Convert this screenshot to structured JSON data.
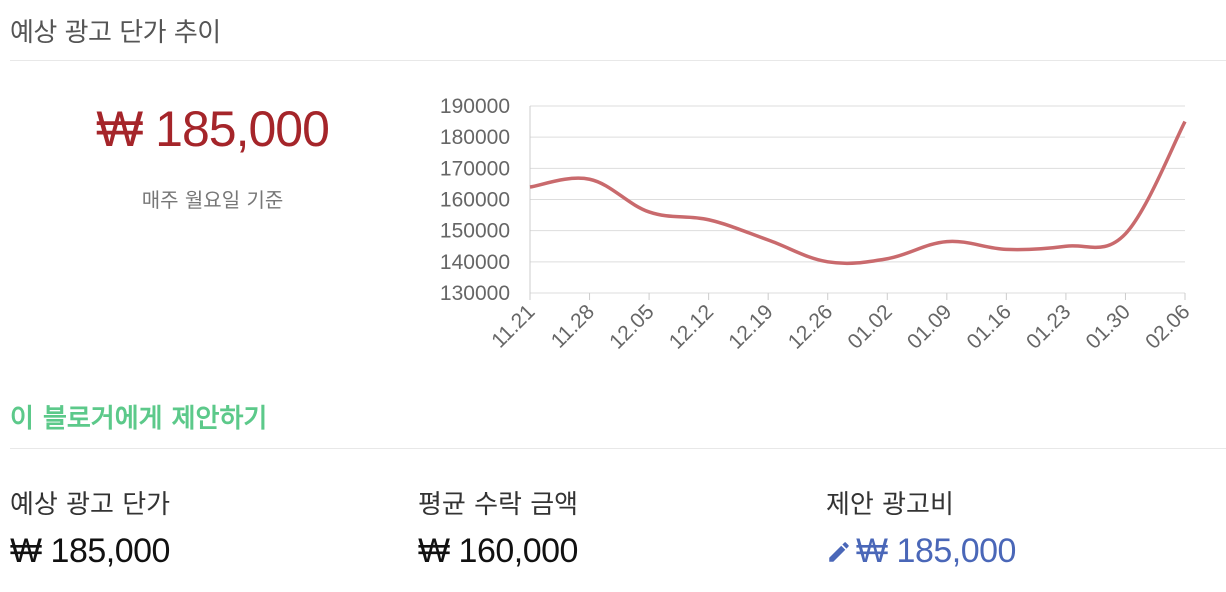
{
  "section_title": "예상 광고 단가 추이",
  "summary": {
    "price": "₩ 185,000",
    "note": "매주 월요일 기준"
  },
  "propose_link": "이 블로거에게 제안하기",
  "stats": [
    {
      "label": "예상 광고 단가",
      "value": "₩ 185,000"
    },
    {
      "label": "평균 수락 금액",
      "value": "₩ 160,000"
    },
    {
      "label": "제안 광고비",
      "value": "₩ 185,000"
    }
  ],
  "colors": {
    "line": "#c96a6d",
    "price": "#a5252a",
    "link": "#5cc98a",
    "proposed": "#4a67b8",
    "grid": "#dddddd",
    "axis_text": "#666666"
  },
  "icons": {
    "edit": "pencil-icon"
  },
  "chart_data": {
    "type": "line",
    "x": [
      "11.21",
      "11.28",
      "12.05",
      "12.12",
      "12.19",
      "12.26",
      "01.02",
      "01.09",
      "01.16",
      "01.23",
      "01.30",
      "02.06"
    ],
    "series": [
      {
        "values": [
          164000,
          166500,
          156000,
          153500,
          147000,
          140000,
          141000,
          146500,
          144000,
          145000,
          149000,
          185000
        ]
      }
    ],
    "ylim": [
      130000,
      190000
    ],
    "yticks": [
      130000,
      140000,
      150000,
      160000,
      170000,
      180000,
      190000
    ],
    "grid": true,
    "title": "",
    "xlabel": "",
    "ylabel": ""
  }
}
